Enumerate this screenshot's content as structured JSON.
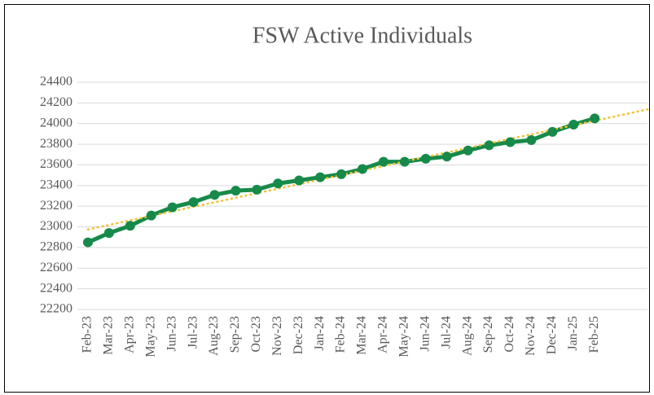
{
  "chart_data": {
    "type": "line",
    "title": "FSW Active Individuals",
    "categories": [
      "Feb-23",
      "Mar-23",
      "Apr-23",
      "May-23",
      "Jun-23",
      "Jul-23",
      "Aug-23",
      "Sep-23",
      "Oct-23",
      "Nov-23",
      "Dec-23",
      "Jan-24",
      "Feb-24",
      "Mar-24",
      "Apr-24",
      "May-24",
      "Jun-24",
      "Jul-24",
      "Aug-24",
      "Sep-24",
      "Oct-24",
      "Nov-24",
      "Dec-24",
      "Jan-25",
      "Feb-25",
      null,
      null
    ],
    "series": [
      {
        "name": "FSW Active Individuals",
        "color": "#178a4a",
        "values": [
          22850,
          22940,
          23010,
          23110,
          23190,
          23240,
          23310,
          23350,
          23360,
          23420,
          23450,
          23480,
          23510,
          23560,
          23630,
          23630,
          23660,
          23680,
          23740,
          23790,
          23820,
          23840,
          23920,
          23990,
          24050,
          null,
          null
        ]
      }
    ],
    "trendline": {
      "type": "linear",
      "color": "#f2c12e"
    },
    "ylim": [
      22200,
      24400
    ],
    "yticks": [
      22200,
      22400,
      22600,
      22800,
      23000,
      23200,
      23400,
      23600,
      23800,
      24000,
      24200,
      24400
    ],
    "grid": true
  }
}
